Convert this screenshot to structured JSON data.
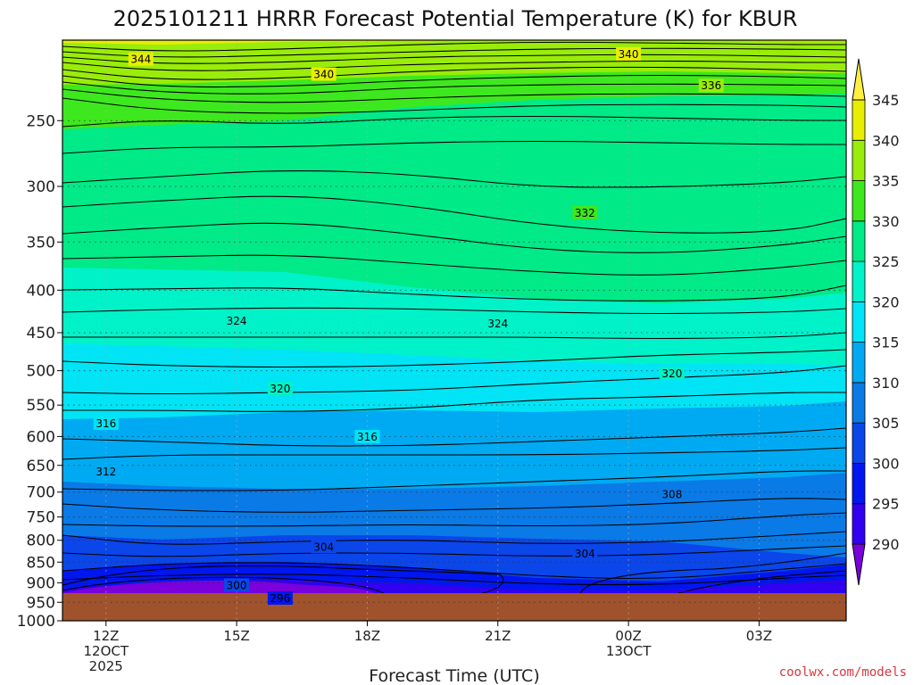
{
  "chart_data": {
    "type": "heatmap",
    "title": "2025101211 HRRR Forecast Potential Temperature (K) for KBUR",
    "xlabel": "Forecast Time (UTC)",
    "ylabel": "",
    "y_scale": "log",
    "y_inverted": true,
    "y_range_hpa": [
      1000,
      200
    ],
    "y_ticks": [
      "250",
      "300",
      "350",
      "400",
      "450",
      "500",
      "550",
      "600",
      "650",
      "700",
      "750",
      "800",
      "850",
      "900",
      "950",
      "1000"
    ],
    "x_range_hours": [
      11,
      29
    ],
    "x_ticks": [
      {
        "hour": 12,
        "lines": [
          "12Z",
          "12OCT",
          "2025"
        ]
      },
      {
        "hour": 15,
        "lines": [
          "15Z"
        ]
      },
      {
        "hour": 18,
        "lines": [
          "18Z"
        ]
      },
      {
        "hour": 21,
        "lines": [
          "21Z"
        ]
      },
      {
        "hour": 24,
        "lines": [
          "00Z",
          "13OCT"
        ]
      },
      {
        "hour": 27,
        "lines": [
          "03Z"
        ]
      }
    ],
    "grid": true,
    "colorbar": {
      "levels": [
        290,
        295,
        300,
        305,
        310,
        315,
        320,
        325,
        330,
        335,
        340,
        345
      ],
      "labels": [
        "290",
        "295",
        "300",
        "305",
        "310",
        "315",
        "320",
        "325",
        "330",
        "335",
        "340",
        "345"
      ],
      "colors": [
        "#7a00dc",
        "#3200f0",
        "#0016f0",
        "#0a46ea",
        "#0a7ae6",
        "#00aaf2",
        "#00e4f5",
        "#00f2c8",
        "#00ea88",
        "#3ee81e",
        "#9aec0a",
        "#e8ee00",
        "#fff040"
      ]
    },
    "contour_labels": [
      {
        "text": "344",
        "hour": 12.8,
        "p": 211
      },
      {
        "text": "340",
        "hour": 17.0,
        "p": 220
      },
      {
        "text": "340",
        "hour": 24.0,
        "p": 208
      },
      {
        "text": "336",
        "hour": 25.9,
        "p": 227
      },
      {
        "text": "332",
        "hour": 23.0,
        "p": 323
      },
      {
        "text": "324",
        "hour": 15.0,
        "p": 436
      },
      {
        "text": "324",
        "hour": 21.0,
        "p": 439
      },
      {
        "text": "320",
        "hour": 16.0,
        "p": 526
      },
      {
        "text": "320",
        "hour": 25.0,
        "p": 504
      },
      {
        "text": "316",
        "hour": 12.0,
        "p": 579
      },
      {
        "text": "316",
        "hour": 18.0,
        "p": 601
      },
      {
        "text": "312",
        "hour": 12.0,
        "p": 662
      },
      {
        "text": "308",
        "hour": 25.0,
        "p": 705
      },
      {
        "text": "304",
        "hour": 17.0,
        "p": 815
      },
      {
        "text": "304",
        "hour": 23.0,
        "p": 831
      },
      {
        "text": "300",
        "hour": 15.0,
        "p": 907
      },
      {
        "text": "296",
        "hour": 16.0,
        "p": 940
      }
    ],
    "credit": "coolwx.com/models"
  }
}
